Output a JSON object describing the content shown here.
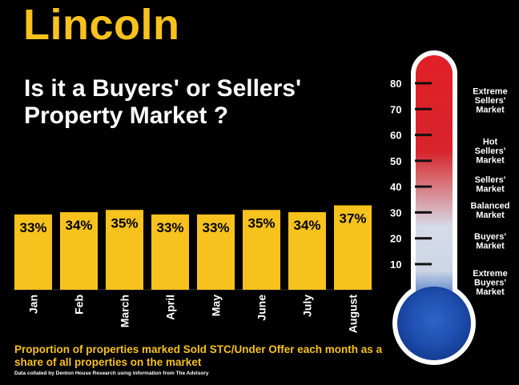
{
  "title": "Lincoln",
  "subtitle_lines": [
    "Is it a Buyers' or Sellers'",
    "Property Market ?"
  ],
  "caption": "Proportion of properties marked Sold STC/Under Offer each month as a share of all properties on the market",
  "credit": "Data collated by Denton House Research using information from The Advisory",
  "colors": {
    "background": "#000000",
    "accent": "#F7C21D",
    "text": "#FFFFFF"
  },
  "chart_data": {
    "type": "bar",
    "categories": [
      "Jan",
      "Feb",
      "March",
      "April",
      "May",
      "June",
      "July",
      "August"
    ],
    "values": [
      33,
      34,
      35,
      33,
      33,
      35,
      34,
      37
    ],
    "data_labels": [
      "33%",
      "34%",
      "35%",
      "33%",
      "33%",
      "35%",
      "34%",
      "37%"
    ],
    "xlabel": "",
    "ylabel": "",
    "grid": false,
    "legend": "none"
  },
  "thermometer": {
    "ticks": [
      80,
      70,
      60,
      50,
      40,
      30,
      20,
      10
    ],
    "range": [
      0,
      80
    ],
    "zones": [
      {
        "label_lines": [
          "Extreme",
          "Sellers'",
          "Market"
        ],
        "center": 73.5
      },
      {
        "label_lines": [
          "Hot",
          "Sellers'",
          "Market"
        ],
        "center": 54
      },
      {
        "label_lines": [
          "Sellers'",
          "Market"
        ],
        "center": 41
      },
      {
        "label_lines": [
          "Balanced",
          "Market"
        ],
        "center": 31
      },
      {
        "label_lines": [
          "Buyers'",
          "Market"
        ],
        "center": 19
      },
      {
        "label_lines": [
          "Extreme",
          "Buyers'",
          "Market"
        ],
        "center": 3
      }
    ]
  }
}
